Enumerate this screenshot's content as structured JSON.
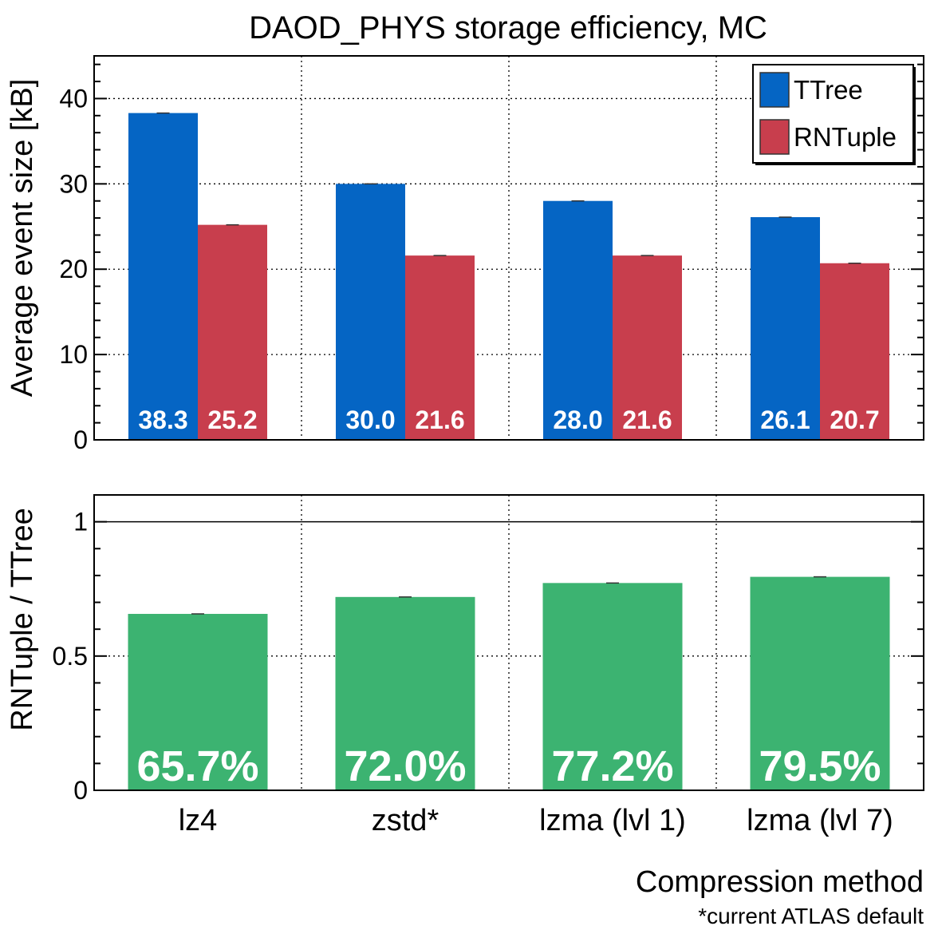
{
  "title": "DAOD_PHYS storage efficiency, MC",
  "xlabel": "Compression method",
  "footnote": "*current ATLAS default",
  "colors": {
    "ttree": "#0565c4",
    "rntuple": "#c83e4d",
    "ratio": "#3cb371"
  },
  "chart_data": [
    {
      "type": "bar",
      "categories": [
        "lz4",
        "zstd*",
        "lzma (lvl 1)",
        "lzma (lvl 7)"
      ],
      "series": [
        {
          "name": "TTree",
          "values": [
            38.3,
            30.0,
            28.0,
            26.1
          ],
          "labels": [
            "38.3",
            "30.0",
            "28.0",
            "26.1"
          ]
        },
        {
          "name": "RNTuple",
          "values": [
            25.2,
            21.6,
            21.6,
            20.7
          ],
          "labels": [
            "25.2",
            "21.6",
            "21.6",
            "20.7"
          ]
        }
      ],
      "ylabel": "Average event size [kB]",
      "ylim": [
        0,
        45
      ],
      "yticks": [
        "0",
        "10",
        "20",
        "30",
        "40"
      ],
      "grid": true,
      "legend_position": "top-right"
    },
    {
      "type": "bar",
      "categories": [
        "lz4",
        "zstd*",
        "lzma (lvl 1)",
        "lzma (lvl 7)"
      ],
      "series": [
        {
          "name": "RNTuple / TTree",
          "values": [
            0.657,
            0.72,
            0.772,
            0.795
          ],
          "labels": [
            "65.7%",
            "72.0%",
            "77.2%",
            "79.5%"
          ]
        }
      ],
      "ylabel": "RNTuple / TTree",
      "ylim": [
        0,
        1.1
      ],
      "yticks": [
        "0",
        "0.5",
        "1"
      ],
      "reference_line": 1,
      "grid": true
    }
  ]
}
